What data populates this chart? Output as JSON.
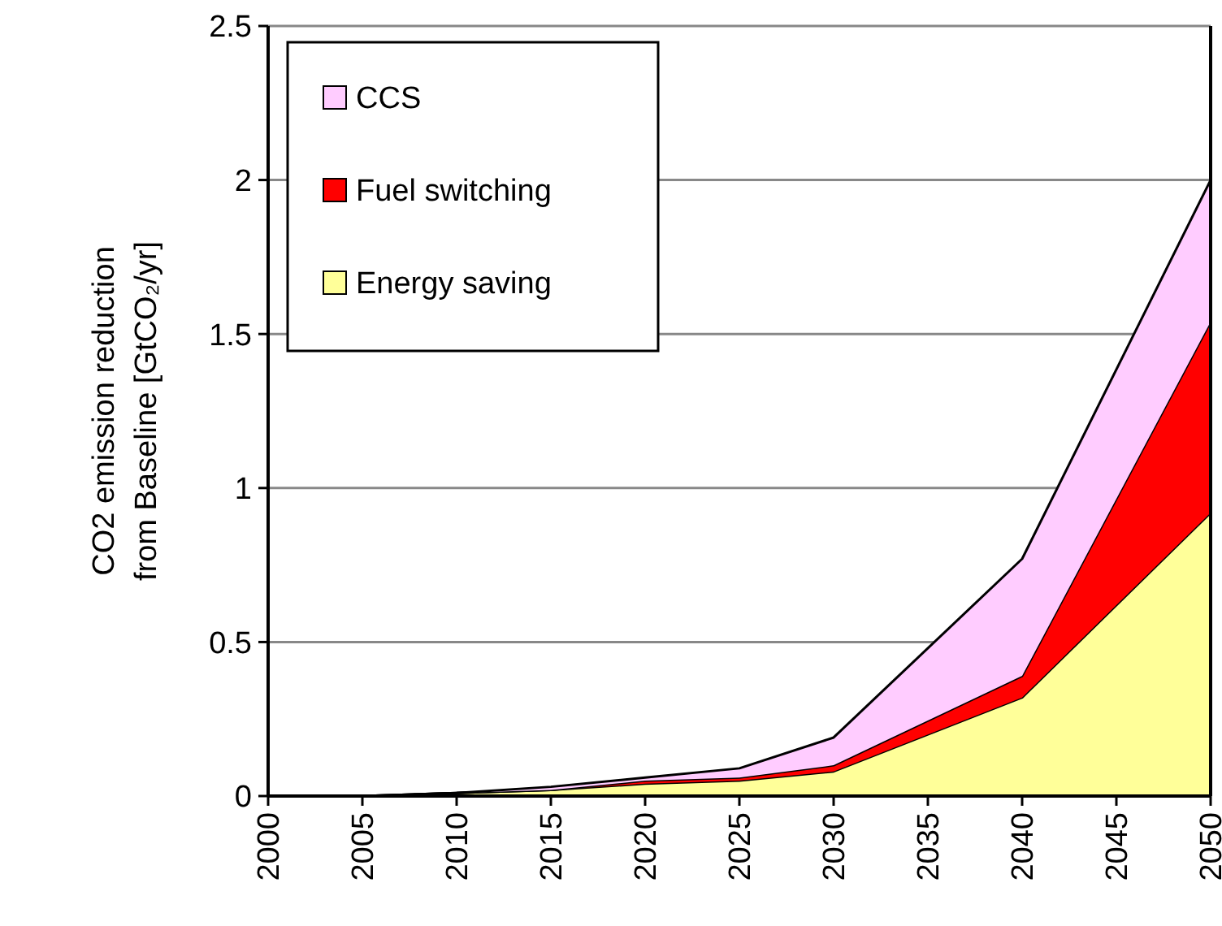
{
  "chart_data": {
    "type": "area",
    "stacked": true,
    "ylabel": "CO2 emission reduction\nfrom Baseline [GtCO₂/yr]",
    "x": [
      2000,
      2005,
      2010,
      2015,
      2020,
      2025,
      2030,
      2040,
      2050
    ],
    "series": [
      {
        "name": "Energy saving",
        "color": "#ffff99",
        "values": [
          0,
          0,
          0.01,
          0.02,
          0.04,
          0.05,
          0.08,
          0.32,
          0.92
        ]
      },
      {
        "name": "Fuel switching",
        "color": "#ff0000",
        "values": [
          0,
          0,
          0,
          0,
          0.01,
          0.01,
          0.02,
          0.07,
          0.62
        ]
      },
      {
        "name": "CCS",
        "color": "#ffccff",
        "values": [
          0,
          0,
          0,
          0.01,
          0.01,
          0.03,
          0.09,
          0.38,
          0.46
        ]
      }
    ],
    "xlim": [
      2000,
      2050
    ],
    "xticks": [
      2000,
      2005,
      2010,
      2015,
      2020,
      2025,
      2030,
      2035,
      2040,
      2045,
      2050
    ],
    "ylim": [
      0,
      2.5
    ],
    "yticks": [
      0,
      0.5,
      1,
      1.5,
      2,
      2.5
    ],
    "grid": "y",
    "legend": "top left"
  }
}
